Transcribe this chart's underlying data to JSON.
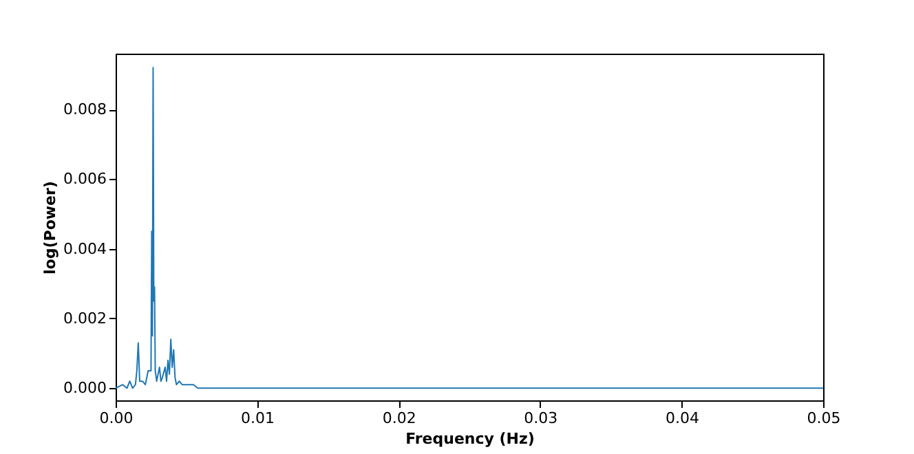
{
  "chart_data": {
    "type": "line",
    "xlabel": "Frequency (Hz)",
    "ylabel": "log(Power)",
    "x": [
      0,
      0.0005,
      0.0008,
      0.001,
      0.0012,
      0.0014,
      0.0015,
      0.0016,
      0.0017,
      0.0019,
      0.0021,
      0.0023,
      0.0025,
      0.00255,
      0.0026,
      0.00265,
      0.0027,
      0.00275,
      0.0028,
      0.0029,
      0.0031,
      0.0032,
      0.0033,
      0.0035,
      0.0036,
      0.0037,
      0.0038,
      0.0039,
      0.004,
      0.0041,
      0.0042,
      0.0043,
      0.0045,
      0.0047,
      0.0049,
      0.0052,
      0.0055,
      0.0058,
      0.0065,
      0.008,
      0.012,
      0.02,
      0.03,
      0.04,
      0.05
    ],
    "series": [
      {
        "color": "#1f77b4",
        "values": [
          0,
          0.0001,
          0,
          0.0002,
          0,
          0.0001,
          0.0005,
          0.0013,
          0.0002,
          0.0002,
          0.0001,
          0.0005,
          0.0005,
          0.0045,
          0.0015,
          0.0092,
          0.0025,
          0.0029,
          0.0005,
          0.0002,
          0.0006,
          0.0002,
          0.0003,
          0.0006,
          0.0002,
          0.0008,
          0.0004,
          0.0014,
          0.0006,
          0.0011,
          0.0003,
          0.0001,
          0.0002,
          0.0001,
          0.0001,
          0.0001,
          0.0001,
          0,
          0,
          0,
          0,
          0,
          0,
          0,
          0
        ]
      }
    ],
    "xlim": [
      0,
      0.05
    ],
    "ylim": [
      -0.00035,
      0.0096
    ],
    "xticks": [
      {
        "value": 0,
        "label": "0.00"
      },
      0.01,
      0.02,
      0.03,
      0.04,
      {
        "value": 0.05,
        "label": "0.05"
      }
    ],
    "yticks": [
      {
        "value": 0,
        "label": "0.000"
      },
      0.002,
      0.004,
      0.006,
      0.008
    ],
    "grid": false
  }
}
